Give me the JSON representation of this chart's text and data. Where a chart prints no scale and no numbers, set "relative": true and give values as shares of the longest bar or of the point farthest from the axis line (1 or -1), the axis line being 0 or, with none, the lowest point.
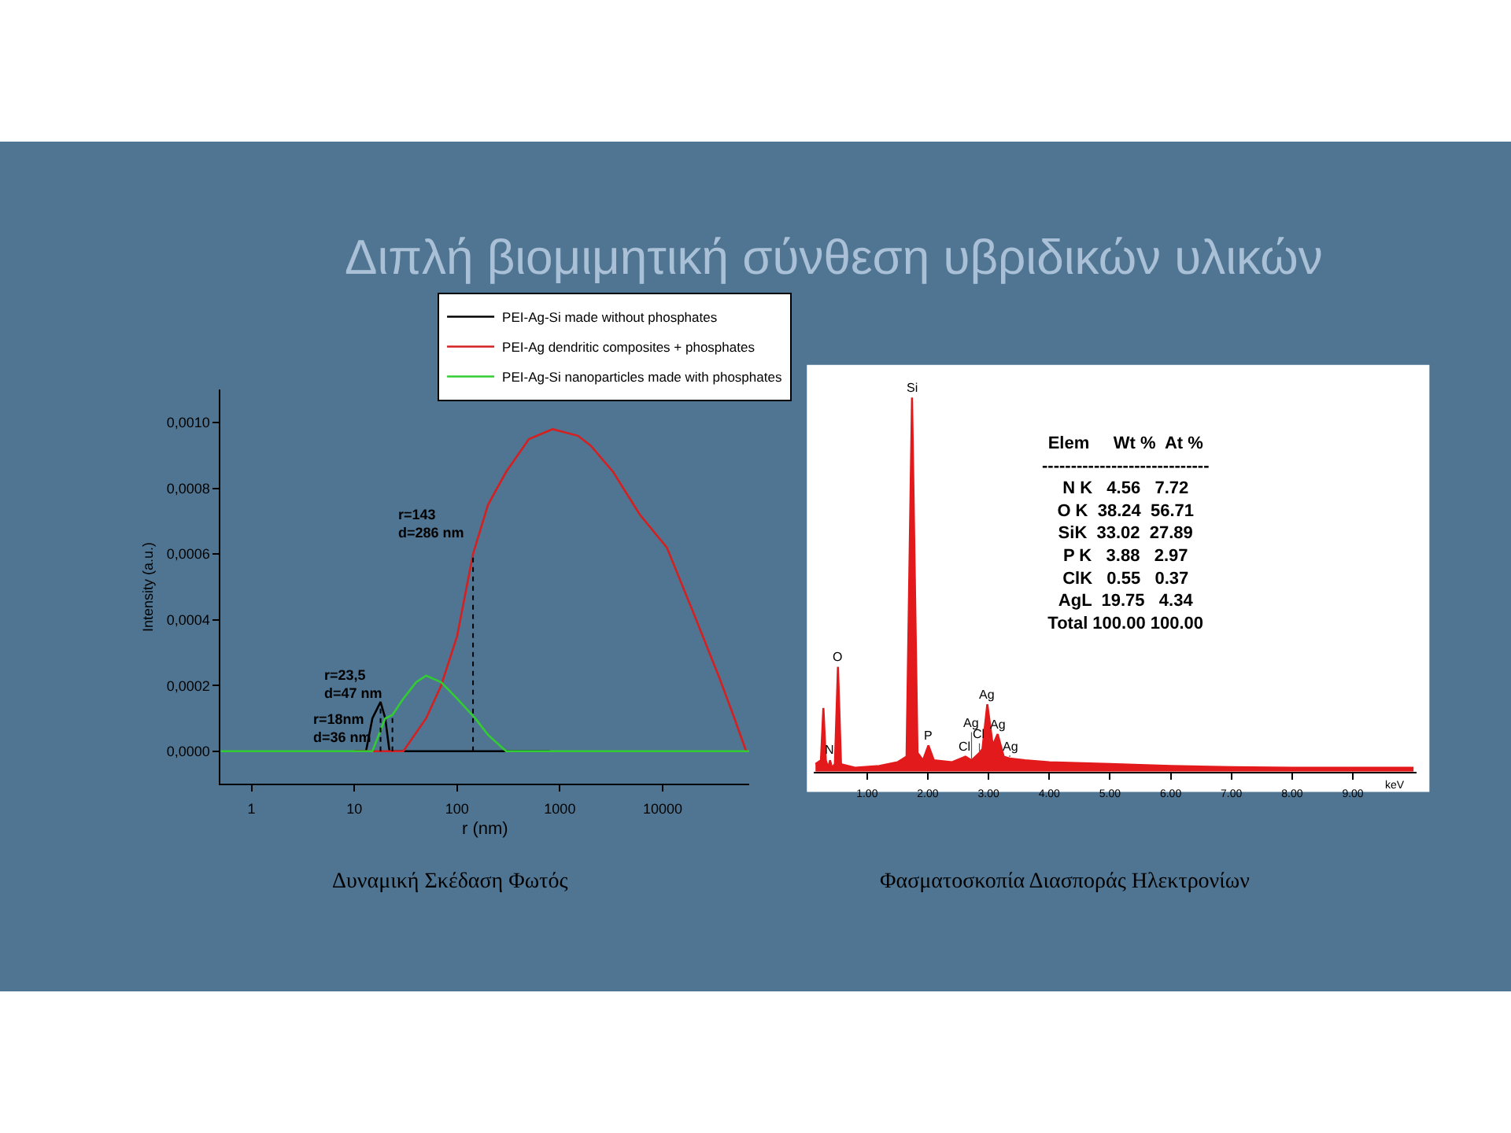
{
  "chart_data": [
    {
      "type": "line",
      "title": "Διπλή βιομιμητική σύνθεση υβριδικών υλικών",
      "xlabel": "r (nm)",
      "ylabel": "Intensity (a.u.)",
      "log": "x",
      "xlim": [
        0.5,
        70000
      ],
      "xticks": [
        1,
        10,
        100,
        1000,
        10000
      ],
      "ylim": [
        -0.0001,
        0.0011
      ],
      "yticks": [
        {
          "value": 0,
          "label": "0,0000"
        },
        {
          "value": 0.0002,
          "label": "0,0002"
        },
        {
          "value": 0.0004,
          "label": "0,0004"
        },
        {
          "value": 0.0006,
          "label": "0,0006"
        },
        {
          "value": 0.0008,
          "label": "0,0008"
        },
        {
          "value": 0.001,
          "label": "0,0010"
        }
      ],
      "grid": false,
      "legend": "top right",
      "marker": "none",
      "line_style": "solid",
      "series": [
        {
          "name": "PEI-Ag-Si made without phosphates",
          "color": "#000000",
          "x": [
            10,
            13,
            15,
            18,
            20,
            22,
            30,
            100,
            800
          ],
          "values": [
            0,
            0,
            0.0001,
            0.00015,
            0.0001,
            0,
            0,
            0,
            0
          ]
        },
        {
          "name": "PEI-Ag dendritic composites + phosphates",
          "color": "#d42020",
          "x": [
            10,
            20,
            30,
            50,
            70,
            100,
            143,
            200,
            300,
            500,
            850,
            1500,
            2000,
            3300,
            6000,
            11000,
            20000,
            36000,
            50000,
            65000
          ],
          "values": [
            0,
            0,
            0,
            0.0001,
            0.0002,
            0.00035,
            0.0006,
            0.00075,
            0.00085,
            0.00095,
            0.00098,
            0.00096,
            0.00093,
            0.00085,
            0.00072,
            0.00062,
            0.00042,
            0.00022,
            0.0001,
            0
          ]
        },
        {
          "name": "PEI-Ag-Si nanoparticles made with phosphates",
          "color": "#33cc33",
          "x": [
            0.5,
            10,
            15,
            20,
            23.5,
            30,
            40,
            50,
            70,
            100,
            150,
            200,
            300,
            600,
            70000
          ],
          "values": [
            0,
            0,
            0,
            0.0001,
            0.00011,
            0.00016,
            0.00021,
            0.00023,
            0.00021,
            0.00016,
            0.0001,
            5e-05,
            0,
            0,
            0
          ]
        }
      ],
      "ref_lines": [
        {
          "axis": "x",
          "value": 18,
          "color": "#000000",
          "line_style": "dotted",
          "label": "r=18nm\nd=36 nm"
        },
        {
          "axis": "x",
          "value": 23.5,
          "color": "#000000",
          "line_style": "dotted",
          "label": "r=23,5\nd=47 nm"
        },
        {
          "axis": "x",
          "value": 143,
          "color": "#000000",
          "line_style": "dotted",
          "label": "r=143\nd=286 nm"
        }
      ],
      "annotations": [
        "Δυναμική Σκέδαση Φωτός"
      ]
    },
    {
      "type": "area",
      "relative": true,
      "xlabel": "keV",
      "xlim": [
        0.12,
        10.05
      ],
      "xticks": [
        {
          "value": 1,
          "label": "1.00"
        },
        {
          "value": 2,
          "label": "2.00"
        },
        {
          "value": 3,
          "label": "3.00"
        },
        {
          "value": 4,
          "label": "4.00"
        },
        {
          "value": 5,
          "label": "5.00"
        },
        {
          "value": 6,
          "label": "6.00"
        },
        {
          "value": 7,
          "label": "7.00"
        },
        {
          "value": 8,
          "label": "8.00"
        },
        {
          "value": 9,
          "label": "9.00"
        }
      ],
      "grid": false,
      "marker": "none",
      "series": [
        {
          "color": "#e31a1c",
          "x": [
            0.15,
            0.24,
            0.28,
            0.32,
            0.36,
            0.39,
            0.42,
            0.47,
            0.52,
            0.57,
            0.8,
            1.2,
            1.5,
            1.65,
            1.74,
            1.83,
            1.92,
            2.01,
            2.1,
            2.4,
            2.62,
            2.72,
            2.85,
            2.9,
            2.98,
            3.07,
            3.15,
            3.25,
            3.35,
            3.6,
            4.0,
            5.0,
            6.0,
            7.0,
            8.0,
            9.0,
            10.0
          ],
          "values": [
            0.02,
            0.03,
            0.17,
            0.03,
            0.01,
            0.03,
            0.01,
            0.02,
            0.28,
            0.02,
            0.01,
            0.015,
            0.025,
            0.04,
            1.0,
            0.05,
            0.03,
            0.07,
            0.03,
            0.025,
            0.04,
            0.03,
            0.05,
            0.06,
            0.18,
            0.07,
            0.1,
            0.04,
            0.035,
            0.03,
            0.025,
            0.02,
            0.015,
            0.012,
            0.01,
            0.01,
            0.01
          ]
        }
      ],
      "annotations": [
        {
          "text": "N",
          "x": 0.39,
          "y": 0.03
        },
        {
          "text": "O",
          "x": 0.52,
          "y": 0.28
        },
        {
          "text": "Si",
          "x": 1.74,
          "y": 1.0
        },
        {
          "text": "P",
          "x": 2.01,
          "y": 0.07
        },
        {
          "text": "Cl",
          "x": 2.62,
          "y": 0.04
        },
        {
          "text": "Ag",
          "x": 2.72,
          "y": 0.03
        },
        {
          "text": "Cl",
          "x": 2.85,
          "y": 0.05
        },
        {
          "text": "Ag",
          "x": 2.98,
          "y": 0.18
        },
        {
          "text": "Ag",
          "x": 3.15,
          "y": 0.1
        },
        {
          "text": "Ag",
          "x": 3.35,
          "y": 0.035
        },
        "Elem     Wt %  At %\n-----------------------------\nN K   4.56   7.72\nO K  38.24  56.71\nSiK  33.02  27.89\nP K   3.88   2.97\nClK   0.55   0.37\nAgL  19.75   4.34\nTotal 100.00 100.00",
        "Φασματοσκοπία Διασποράς Ηλεκτρονίων"
      ]
    }
  ]
}
